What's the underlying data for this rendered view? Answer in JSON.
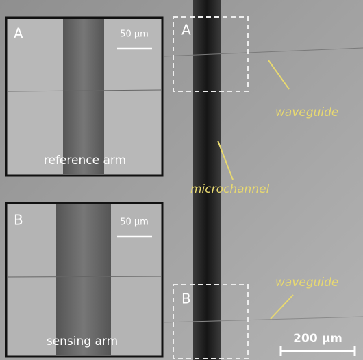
{
  "insets": [
    {
      "label": "A",
      "scale": "50 µm",
      "caption": "reference arm"
    },
    {
      "label": "B",
      "scale": "50 µm",
      "caption": "sensing arm"
    }
  ],
  "regions": [
    "A",
    "B"
  ],
  "annotations": [
    "waveguide",
    "microchannel",
    "waveguide"
  ],
  "scale_bar": "200 µm"
}
